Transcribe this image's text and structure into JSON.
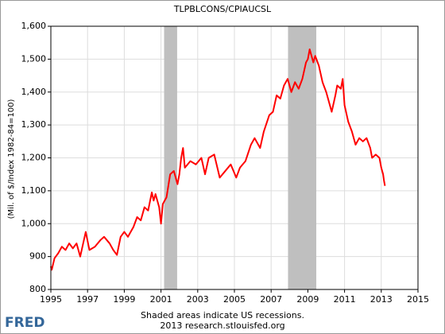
{
  "chart_data": {
    "type": "line",
    "title": "TLPBLCONS/CPIAUCSL",
    "y_label": "(Mil. of $/Index 1982-84=100)",
    "note": "Shaded areas indicate US recessions.",
    "source": "2013 research.stlouisfed.org",
    "logo": "FRED",
    "x": [
      1995.0,
      1995.05,
      1995.2,
      1995.4,
      1995.6,
      1995.8,
      1996.0,
      1996.2,
      1996.4,
      1996.6,
      1996.8,
      1996.9,
      1997.1,
      1997.4,
      1997.7,
      1997.9,
      1998.2,
      1998.4,
      1998.6,
      1998.8,
      1999.0,
      1999.2,
      1999.5,
      1999.7,
      1999.9,
      2000.1,
      2000.3,
      2000.5,
      2000.6,
      2000.7,
      2000.9,
      2001.0,
      2001.1,
      2001.3,
      2001.5,
      2001.7,
      2001.9,
      2002.0,
      2002.1,
      2002.2,
      2002.3,
      2002.6,
      2002.9,
      2003.2,
      2003.4,
      2003.6,
      2003.9,
      2004.2,
      2004.5,
      2004.8,
      2005.1,
      2005.3,
      2005.6,
      2005.9,
      2006.1,
      2006.4,
      2006.6,
      2006.9,
      2007.1,
      2007.3,
      2007.5,
      2007.7,
      2007.9,
      2008.1,
      2008.3,
      2008.5,
      2008.7,
      2008.9,
      2009.0,
      2009.1,
      2009.3,
      2009.4,
      2009.6,
      2009.8,
      2010.0,
      2010.2,
      2010.3,
      2010.5,
      2010.6,
      2010.8,
      2010.9,
      2011.0,
      2011.2,
      2011.4,
      2011.6,
      2011.8,
      2012.0,
      2012.2,
      2012.4,
      2012.5,
      2012.7,
      2012.9,
      2013.0,
      2013.1,
      2013.15,
      2013.2
    ],
    "series": [
      {
        "name": "TLPBLCONS/CPIAUCSL",
        "color": "#ff0000",
        "values": [
          870,
          860,
          895,
          910,
          930,
          920,
          940,
          925,
          940,
          900,
          950,
          975,
          920,
          930,
          950,
          960,
          940,
          920,
          905,
          960,
          975,
          960,
          990,
          1020,
          1010,
          1050,
          1040,
          1095,
          1070,
          1090,
          1050,
          1000,
          1060,
          1080,
          1150,
          1160,
          1120,
          1150,
          1200,
          1230,
          1170,
          1190,
          1180,
          1200,
          1150,
          1200,
          1210,
          1140,
          1160,
          1180,
          1140,
          1170,
          1190,
          1240,
          1260,
          1230,
          1280,
          1330,
          1340,
          1390,
          1380,
          1420,
          1440,
          1400,
          1430,
          1410,
          1440,
          1490,
          1500,
          1530,
          1490,
          1510,
          1480,
          1430,
          1400,
          1360,
          1340,
          1390,
          1420,
          1410,
          1440,
          1360,
          1310,
          1280,
          1240,
          1260,
          1250,
          1260,
          1230,
          1200,
          1210,
          1200,
          1170,
          1150,
          1130,
          1115
        ]
      }
    ],
    "recessions": [
      [
        2001.17,
        2001.88
      ],
      [
        2007.92,
        2009.46
      ]
    ],
    "recession_color": "#bfbfbf",
    "xlim": [
      1995,
      2015
    ],
    "xticks": [
      1995,
      1997,
      1999,
      2001,
      2003,
      2005,
      2007,
      2009,
      2011,
      2013,
      2015
    ],
    "ylim": [
      800,
      1600
    ],
    "yticks": [
      800,
      900,
      {
        "value": 1000,
        "label": "1,000"
      },
      {
        "value": 1100,
        "label": "1,100"
      },
      {
        "value": 1200,
        "label": "1,200"
      },
      {
        "value": 1300,
        "label": "1,300"
      },
      {
        "value": 1400,
        "label": "1,400"
      },
      {
        "value": 1500,
        "label": "1,500"
      },
      {
        "value": 1600,
        "label": "1,600"
      }
    ],
    "grid": true
  }
}
